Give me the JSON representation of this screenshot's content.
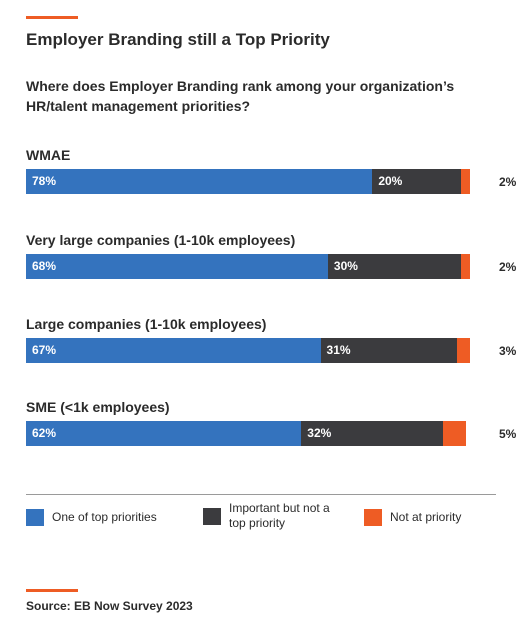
{
  "header": {
    "title": "Employer Branding still a Top Priority",
    "question": "Where does Employer Branding rank among your organization’s HR/talent management priorities?"
  },
  "colors": {
    "accent": "#ee5c24",
    "top_priority": "#3473be",
    "important": "#3b3b3e",
    "not_priority": "#ee5c24"
  },
  "chart_data": {
    "type": "bar",
    "orientation": "horizontal",
    "stacked": true,
    "categories": [
      "WMAE",
      "Very large companies (1-10k employees)",
      "Large companies (1-10k employees)",
      "SME (<1k employees)"
    ],
    "series": [
      {
        "name": "One of top priorities",
        "values": [
          78,
          68,
          67,
          62
        ],
        "labels": [
          "78%",
          "68%",
          "67%",
          "62%"
        ]
      },
      {
        "name": "Important but not a top priority",
        "values": [
          20,
          30,
          31,
          32
        ],
        "labels": [
          "20%",
          "30%",
          "31%",
          "32%"
        ]
      },
      {
        "name": "Not at priority",
        "values": [
          2,
          2,
          3,
          5
        ],
        "labels": [
          "2%",
          "2%",
          "3%",
          "5%"
        ]
      }
    ],
    "xlim": [
      0,
      100
    ],
    "legend_position": "bottom"
  },
  "legend": [
    {
      "label": "One of top priorities",
      "icon": "square-swatch"
    },
    {
      "label": "Important but not a top priority",
      "icon": "square-swatch"
    },
    {
      "label": "Not at priority",
      "icon": "square-swatch"
    }
  ],
  "footer": {
    "source": "Source: EB Now Survey 2023"
  }
}
